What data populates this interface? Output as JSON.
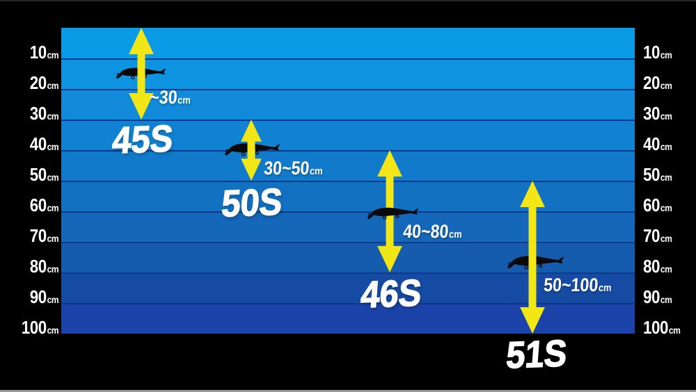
{
  "chart_data": {
    "type": "range-bar",
    "orientation": "vertical-depth-downward",
    "title": "",
    "categories": [
      "45S",
      "50S",
      "46S",
      "51S"
    ],
    "series": [
      {
        "name": "diving depth range",
        "unit": "cm",
        "ranges": [
          {
            "model": "45S",
            "min": 0,
            "max": 30,
            "label": "~30cm",
            "lure_depth_cm": 15
          },
          {
            "model": "50S",
            "min": 30,
            "max": 50,
            "label": "30~50cm",
            "lure_depth_cm": 40
          },
          {
            "model": "46S",
            "min": 40,
            "max": 80,
            "label": "40~80cm",
            "lure_depth_cm": 61
          },
          {
            "model": "51S",
            "min": 50,
            "max": 100,
            "label": "50~100cm",
            "lure_depth_cm": 77
          }
        ]
      }
    ],
    "axis": {
      "range_cm": [
        0,
        100
      ],
      "tick_interval_cm": 10,
      "tick_labels": [
        "10cm",
        "20cm",
        "30cm",
        "40cm",
        "50cm",
        "60cm",
        "70cm",
        "80cm",
        "90cm",
        "100cm"
      ],
      "sides": [
        "left",
        "right"
      ]
    },
    "grid": true,
    "legend": false
  },
  "scale": {
    "unit": "cm",
    "ticks": [
      "10",
      "20",
      "30",
      "40",
      "50",
      "60",
      "70",
      "80",
      "90",
      "100"
    ]
  },
  "lures": [
    {
      "model": "45S",
      "range_text": "~30",
      "unit": "cm",
      "depth_min": 0,
      "depth_max": 30,
      "lure_depth": 15
    },
    {
      "model": "50S",
      "range_text": "30~50",
      "unit": "cm",
      "depth_min": 30,
      "depth_max": 50,
      "lure_depth": 40
    },
    {
      "model": "46S",
      "range_text": "40~80",
      "unit": "cm",
      "depth_min": 40,
      "depth_max": 80,
      "lure_depth": 61
    },
    {
      "model": "51S",
      "range_text": "50~100",
      "unit": "cm",
      "depth_min": 50,
      "depth_max": 100,
      "lure_depth": 77
    }
  ],
  "colors": {
    "background": "#000000",
    "text_white": "#ffffff",
    "arrow_yellow": "#f2e617",
    "lure_black": "#0a0a0a",
    "grid_line": "#0c3a8a",
    "band_colors": [
      "#0b9ae6",
      "#0d93e0",
      "#108ad9",
      "#1182d2",
      "#127aca",
      "#1371c2",
      "#1467b9",
      "#155bae",
      "#164ba3",
      "#1b43a9"
    ],
    "top_edge": "#262626",
    "bottom_edge": "#9a9a9a"
  }
}
